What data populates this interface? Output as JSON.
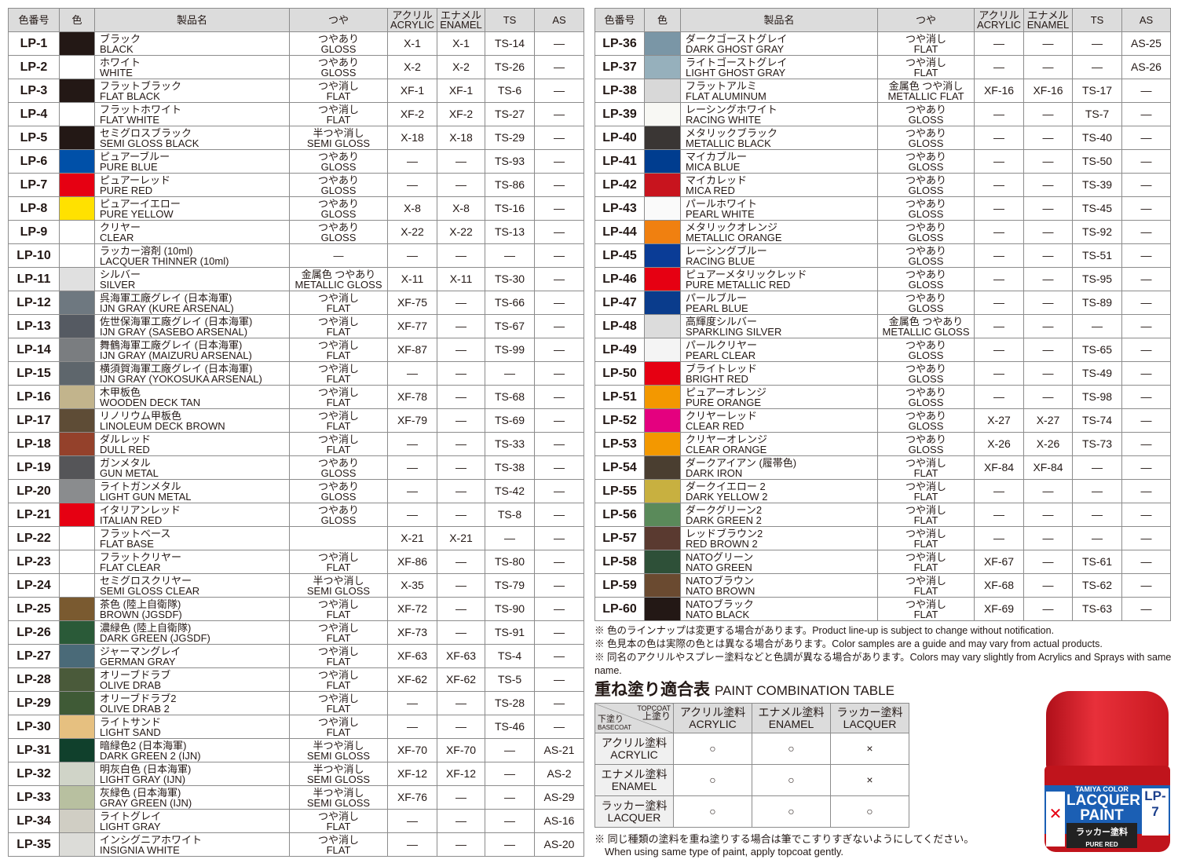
{
  "headers": [
    "色番号",
    "色",
    "製品名",
    "つや",
    "アクリル\nACRYLIC",
    "エナメル\nENAMEL",
    "TS",
    "AS"
  ],
  "left_rows": [
    [
      "LP-1",
      "#231815",
      "ブラック",
      "BLACK",
      "つやあり",
      "GLOSS",
      "X-1",
      "X-1",
      "TS-14",
      "—"
    ],
    [
      "LP-2",
      "#ffffff",
      "ホワイト",
      "WHITE",
      "つやあり",
      "GLOSS",
      "X-2",
      "X-2",
      "TS-26",
      "—"
    ],
    [
      "LP-3",
      "#231815",
      "フラットブラック",
      "FLAT BLACK",
      "つや消し",
      "FLAT",
      "XF-1",
      "XF-1",
      "TS-6",
      "—"
    ],
    [
      "LP-4",
      "#ffffff",
      "フラットホワイト",
      "FLAT WHITE",
      "つや消し",
      "FLAT",
      "XF-2",
      "XF-2",
      "TS-27",
      "—"
    ],
    [
      "LP-5",
      "#231815",
      "セミグロスブラック",
      "SEMI GLOSS BLACK",
      "半つや消し",
      "SEMI GLOSS",
      "X-18",
      "X-18",
      "TS-29",
      "—"
    ],
    [
      "LP-6",
      "#0050a8",
      "ピュアーブルー",
      "PURE BLUE",
      "つやあり",
      "GLOSS",
      "—",
      "—",
      "TS-93",
      "—"
    ],
    [
      "LP-7",
      "#e60012",
      "ピュアーレッド",
      "PURE RED",
      "つやあり",
      "GLOSS",
      "—",
      "—",
      "TS-86",
      "—"
    ],
    [
      "LP-8",
      "#ffe100",
      "ピュアーイエロー",
      "PURE YELLOW",
      "つやあり",
      "GLOSS",
      "X-8",
      "X-8",
      "TS-16",
      "—"
    ],
    [
      "LP-9",
      "#ffffff",
      "クリヤー",
      "CLEAR",
      "つやあり",
      "GLOSS",
      "X-22",
      "X-22",
      "TS-13",
      "—"
    ],
    [
      "LP-10",
      "#ffffff",
      "ラッカー溶剤 (10ml)",
      "LACQUER THINNER (10ml)",
      "—",
      "",
      "—",
      "—",
      "—",
      "—"
    ],
    [
      "LP-11",
      "#e0e0e0",
      "シルバー",
      "SILVER",
      "金属色 つやあり",
      "METALLIC GLOSS",
      "X-11",
      "X-11",
      "TS-30",
      "—"
    ],
    [
      "LP-12",
      "#6e7880",
      "呉海軍工廠グレイ (日本海軍)",
      "IJN GRAY (KURE ARSENAL)",
      "つや消し",
      "FLAT",
      "XF-75",
      "—",
      "TS-66",
      "—"
    ],
    [
      "LP-13",
      "#555a62",
      "佐世保海軍工廠グレイ (日本海軍)",
      "IJN GRAY (SASEBO ARSENAL)",
      "つや消し",
      "FLAT",
      "XF-77",
      "—",
      "TS-67",
      "—"
    ],
    [
      "LP-14",
      "#7a7d80",
      "舞鶴海軍工廠グレイ (日本海軍)",
      "IJN GRAY (MAIZURU ARSENAL)",
      "つや消し",
      "FLAT",
      "XF-87",
      "—",
      "TS-99",
      "—"
    ],
    [
      "LP-15",
      "#5e666c",
      "横須賀海軍工廠グレイ (日本海軍)",
      "IJN GRAY (YOKOSUKA ARSENAL)",
      "つや消し",
      "FLAT",
      "—",
      "—",
      "—",
      "—"
    ],
    [
      "LP-16",
      "#c2b48c",
      "木甲板色",
      "WOODEN DECK TAN",
      "つや消し",
      "FLAT",
      "XF-78",
      "—",
      "TS-68",
      "—"
    ],
    [
      "LP-17",
      "#5e4c36",
      "リノリウム甲板色",
      "LINOLEUM DECK BROWN",
      "つや消し",
      "FLAT",
      "XF-79",
      "—",
      "TS-69",
      "—"
    ],
    [
      "LP-18",
      "#94412b",
      "ダルレッド",
      "DULL RED",
      "つや消し",
      "FLAT",
      "—",
      "—",
      "TS-33",
      "—"
    ],
    [
      "LP-19",
      "#555558",
      "ガンメタル",
      "GUN METAL",
      "つやあり",
      "GLOSS",
      "—",
      "—",
      "TS-38",
      "—"
    ],
    [
      "LP-20",
      "#8a8c8e",
      "ライトガンメタル",
      "LIGHT GUN METAL",
      "つやあり",
      "GLOSS",
      "—",
      "—",
      "TS-42",
      "—"
    ],
    [
      "LP-21",
      "#e60012",
      "イタリアンレッド",
      "ITALIAN RED",
      "つやあり",
      "GLOSS",
      "—",
      "—",
      "TS-8",
      "—"
    ],
    [
      "LP-22",
      "#ffffff",
      "フラットベース",
      "FLAT BASE",
      "",
      "",
      "X-21",
      "X-21",
      "—",
      "—"
    ],
    [
      "LP-23",
      "#ffffff",
      "フラットクリヤー",
      "FLAT CLEAR",
      "つや消し",
      "FLAT",
      "XF-86",
      "—",
      "TS-80",
      "—"
    ],
    [
      "LP-24",
      "#ffffff",
      "セミグロスクリヤー",
      "SEMI GLOSS CLEAR",
      "半つや消し",
      "SEMI GLOSS",
      "X-35",
      "—",
      "TS-79",
      "—"
    ],
    [
      "LP-25",
      "#7a5a30",
      "茶色 (陸上自衛隊)",
      "BROWN (JGSDF)",
      "つや消し",
      "FLAT",
      "XF-72",
      "—",
      "TS-90",
      "—"
    ],
    [
      "LP-26",
      "#2a5a38",
      "濃緑色 (陸上自衛隊)",
      "DARK GREEN (JGSDF)",
      "つや消し",
      "FLAT",
      "XF-73",
      "—",
      "TS-91",
      "—"
    ],
    [
      "LP-27",
      "#4a6a78",
      "ジャーマングレイ",
      "GERMAN GRAY",
      "つや消し",
      "FLAT",
      "XF-63",
      "XF-63",
      "TS-4",
      "—"
    ],
    [
      "LP-28",
      "#4a5a3a",
      "オリーブドラブ",
      "OLIVE DRAB",
      "つや消し",
      "FLAT",
      "XF-62",
      "XF-62",
      "TS-5",
      "—"
    ],
    [
      "LP-29",
      "#3f5a36",
      "オリーブドラブ2",
      "OLIVE DRAB 2",
      "つや消し",
      "FLAT",
      "—",
      "—",
      "TS-28",
      "—"
    ],
    [
      "LP-30",
      "#e6c080",
      "ライトサンド",
      "LIGHT SAND",
      "つや消し",
      "FLAT",
      "—",
      "—",
      "TS-46",
      "—"
    ],
    [
      "LP-31",
      "#10402c",
      "暗緑色2 (日本海軍)",
      "DARK GREEN 2 (IJN)",
      "半つや消し",
      "SEMI GLOSS",
      "XF-70",
      "XF-70",
      "—",
      "AS-21"
    ],
    [
      "LP-32",
      "#d0d4c8",
      "明灰白色 (日本海軍)",
      "LIGHT GRAY (IJN)",
      "半つや消し",
      "SEMI GLOSS",
      "XF-12",
      "XF-12",
      "—",
      "AS-2"
    ],
    [
      "LP-33",
      "#b8c0a0",
      "灰緑色 (日本海軍)",
      "GRAY GREEN (IJN)",
      "半つや消し",
      "SEMI GLOSS",
      "XF-76",
      "—",
      "—",
      "AS-29"
    ],
    [
      "LP-34",
      "#d0cec4",
      "ライトグレイ",
      "LIGHT GRAY",
      "つや消し",
      "FLAT",
      "—",
      "—",
      "—",
      "AS-16"
    ],
    [
      "LP-35",
      "#dcdcd8",
      "インシグニアホワイト",
      "INSIGNIA WHITE",
      "つや消し",
      "FLAT",
      "—",
      "—",
      "—",
      "AS-20"
    ]
  ],
  "right_rows": [
    [
      "LP-36",
      "#7a96a6",
      "ダークゴーストグレイ",
      "DARK GHOST GRAY",
      "つや消し",
      "FLAT",
      "—",
      "—",
      "—",
      "AS-25"
    ],
    [
      "LP-37",
      "#96b0bc",
      "ライトゴーストグレイ",
      "LIGHT GHOST GRAY",
      "つや消し",
      "FLAT",
      "—",
      "—",
      "—",
      "AS-26"
    ],
    [
      "LP-38",
      "#d8d8d8",
      "フラットアルミ",
      "FLAT ALUMINUM",
      "金属色 つや消し",
      "METALLIC FLAT",
      "XF-16",
      "XF-16",
      "TS-17",
      "—"
    ],
    [
      "LP-39",
      "#f8f8f4",
      "レーシングホワイト",
      "RACING WHITE",
      "つやあり",
      "GLOSS",
      "—",
      "—",
      "TS-7",
      "—"
    ],
    [
      "LP-40",
      "#3a3634",
      "メタリックブラック",
      "METALLIC BLACK",
      "つやあり",
      "GLOSS",
      "—",
      "—",
      "TS-40",
      "—"
    ],
    [
      "LP-41",
      "#003d8f",
      "マイカブルー",
      "MICA BLUE",
      "つやあり",
      "GLOSS",
      "—",
      "—",
      "TS-50",
      "—"
    ],
    [
      "LP-42",
      "#c8141e",
      "マイカレッド",
      "MICA RED",
      "つやあり",
      "GLOSS",
      "—",
      "—",
      "TS-39",
      "—"
    ],
    [
      "LP-43",
      "#fafafa",
      "パールホワイト",
      "PEARL WHITE",
      "つやあり",
      "GLOSS",
      "—",
      "—",
      "TS-45",
      "—"
    ],
    [
      "LP-44",
      "#f08010",
      "メタリックオレンジ",
      "METALLIC ORANGE",
      "つやあり",
      "GLOSS",
      "—",
      "—",
      "TS-92",
      "—"
    ],
    [
      "LP-45",
      "#0a3c96",
      "レーシングブルー",
      "RACING BLUE",
      "つやあり",
      "GLOSS",
      "—",
      "—",
      "TS-51",
      "—"
    ],
    [
      "LP-46",
      "#e60012",
      "ピュアーメタリックレッド",
      "PURE METALLIC RED",
      "つやあり",
      "GLOSS",
      "—",
      "—",
      "TS-95",
      "—"
    ],
    [
      "LP-47",
      "#0a3c8c",
      "パールブルー",
      "PEARL BLUE",
      "つやあり",
      "GLOSS",
      "—",
      "—",
      "TS-89",
      "—"
    ],
    [
      "LP-48",
      "#dcdcdc",
      "高輝度シルバー",
      "SPARKLING SILVER",
      "金属色 つやあり",
      "METALLIC GLOSS",
      "—",
      "—",
      "—",
      "—"
    ],
    [
      "LP-49",
      "#f4f4f4",
      "パールクリヤー",
      "PEARL CLEAR",
      "つやあり",
      "GLOSS",
      "—",
      "—",
      "TS-65",
      "—"
    ],
    [
      "LP-50",
      "#e60012",
      "ブライトレッド",
      "BRIGHT RED",
      "つやあり",
      "GLOSS",
      "—",
      "—",
      "TS-49",
      "—"
    ],
    [
      "LP-51",
      "#f39800",
      "ピュアーオレンジ",
      "PURE ORANGE",
      "つやあり",
      "GLOSS",
      "—",
      "—",
      "TS-98",
      "—"
    ],
    [
      "LP-52",
      "#e4007f",
      "クリヤーレッド",
      "CLEAR RED",
      "つやあり",
      "GLOSS",
      "X-27",
      "X-27",
      "TS-74",
      "—"
    ],
    [
      "LP-53",
      "#f39800",
      "クリヤーオレンジ",
      "CLEAR ORANGE",
      "つやあり",
      "GLOSS",
      "X-26",
      "X-26",
      "TS-73",
      "—"
    ],
    [
      "LP-54",
      "#4a3e30",
      "ダークアイアン (履帯色)",
      "DARK IRON",
      "つや消し",
      "FLAT",
      "XF-84",
      "XF-84",
      "—",
      "—"
    ],
    [
      "LP-55",
      "#c8b040",
      "ダークイエロー 2",
      "DARK YELLOW 2",
      "つや消し",
      "FLAT",
      "—",
      "—",
      "—",
      "—"
    ],
    [
      "LP-56",
      "#5a8a5a",
      "ダークグリーン2",
      "DARK GREEN 2",
      "つや消し",
      "FLAT",
      "—",
      "—",
      "—",
      "—"
    ],
    [
      "LP-57",
      "#5a3a30",
      "レッドブラウン2",
      "RED BROWN 2",
      "つや消し",
      "FLAT",
      "—",
      "—",
      "—",
      "—"
    ],
    [
      "LP-58",
      "#2e5038",
      "NATOグリーン",
      "NATO GREEN",
      "つや消し",
      "FLAT",
      "XF-67",
      "—",
      "TS-61",
      "—"
    ],
    [
      "LP-59",
      "#6a4a30",
      "NATOブラウン",
      "NATO BROWN",
      "つや消し",
      "FLAT",
      "XF-68",
      "—",
      "TS-62",
      "—"
    ],
    [
      "LP-60",
      "#231815",
      "NATOブラック",
      "NATO BLACK",
      "つや消し",
      "FLAT",
      "XF-69",
      "—",
      "TS-63",
      "—"
    ]
  ],
  "notes": [
    "※ 色のラインナップは変更する場合があります。Product line-up is subject to change without notification.",
    "※ 色見本の色は実際の色とは異なる場合があります。Color samples are a guide and may vary from actual products.",
    "※ 同名のアクリルやスプレー塗料などと色調が異なる場合があります。Colors may vary slightly from Acrylics and Sprays with same name."
  ],
  "combo": {
    "title_jp": "重ね塗り適合表",
    "title_en": "PAINT COMBINATION TABLE",
    "corner_top_en": "TOPCOAT",
    "corner_top_jp": "上塗り",
    "corner_base_jp": "下塗り",
    "corner_base_en": "BASECOAT",
    "cols": [
      [
        "アクリル塗料",
        "ACRYLIC"
      ],
      [
        "エナメル塗料",
        "ENAMEL"
      ],
      [
        "ラッカー塗料",
        "LACQUER"
      ]
    ],
    "rows": [
      {
        "jp": "アクリル塗料",
        "en": "ACRYLIC",
        "marks": [
          "○",
          "○",
          "×"
        ]
      },
      {
        "jp": "エナメル塗料",
        "en": "ENAMEL",
        "marks": [
          "○",
          "○",
          "×"
        ]
      },
      {
        "jp": "ラッカー塗料",
        "en": "LACQUER",
        "marks": [
          "○",
          "○",
          "○"
        ]
      }
    ],
    "note_jp": "※ 同じ種類の塗料を重ね塗りする場合は筆でこすりすぎないようにしてください。",
    "note_en": "When using same type of paint, apply topcoat gently."
  },
  "jar": {
    "brand": "TAMIYA COLOR",
    "line1": "LACQUER",
    "line2": "PAINT",
    "jp": "ラッカー塗料",
    "name": "PURE RED",
    "code": "LP-7"
  }
}
